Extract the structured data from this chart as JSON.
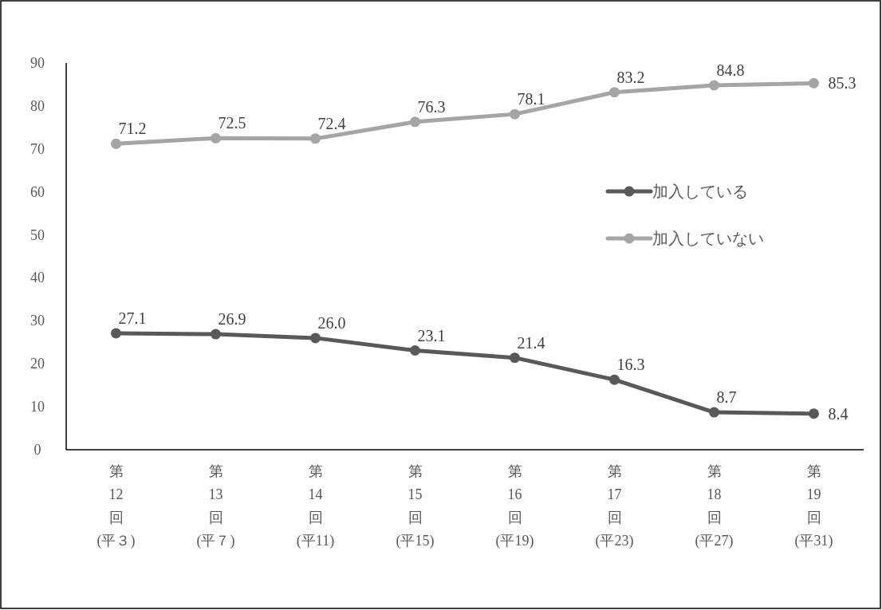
{
  "chart_data": {
    "type": "line",
    "categories": [
      "第\n12\n回\n(平３)",
      "第\n13\n回\n(平７)",
      "第\n14\n回\n(平11)",
      "第\n15\n回\n(平15)",
      "第\n16\n回\n(平19)",
      "第\n17\n回\n(平23)",
      "第\n18\n回\n(平27)",
      "第\n19\n回\n(平31)"
    ],
    "series": [
      {
        "name": "加入している",
        "color": "#595959",
        "values": [
          27.1,
          26.9,
          26.0,
          23.1,
          21.4,
          16.3,
          8.7,
          8.4
        ],
        "value_labels": [
          "27.1",
          "26.9",
          "26.0",
          "23.1",
          "21.4",
          "16.3",
          "8.7",
          "8.4"
        ]
      },
      {
        "name": "加入していない",
        "color": "#a5a5a5",
        "values": [
          71.2,
          72.5,
          72.4,
          76.3,
          78.1,
          83.2,
          84.8,
          85.3
        ],
        "value_labels": [
          "71.2",
          "72.5",
          "72.4",
          "76.3",
          "78.1",
          "83.2",
          "84.8",
          "85.3"
        ]
      }
    ],
    "ylim": [
      0,
      90
    ],
    "yticks": [
      0,
      10,
      20,
      30,
      40,
      50,
      60,
      70,
      80,
      90
    ],
    "legend": "right",
    "grid": false,
    "marker": "circle",
    "line_style": "solid"
  }
}
